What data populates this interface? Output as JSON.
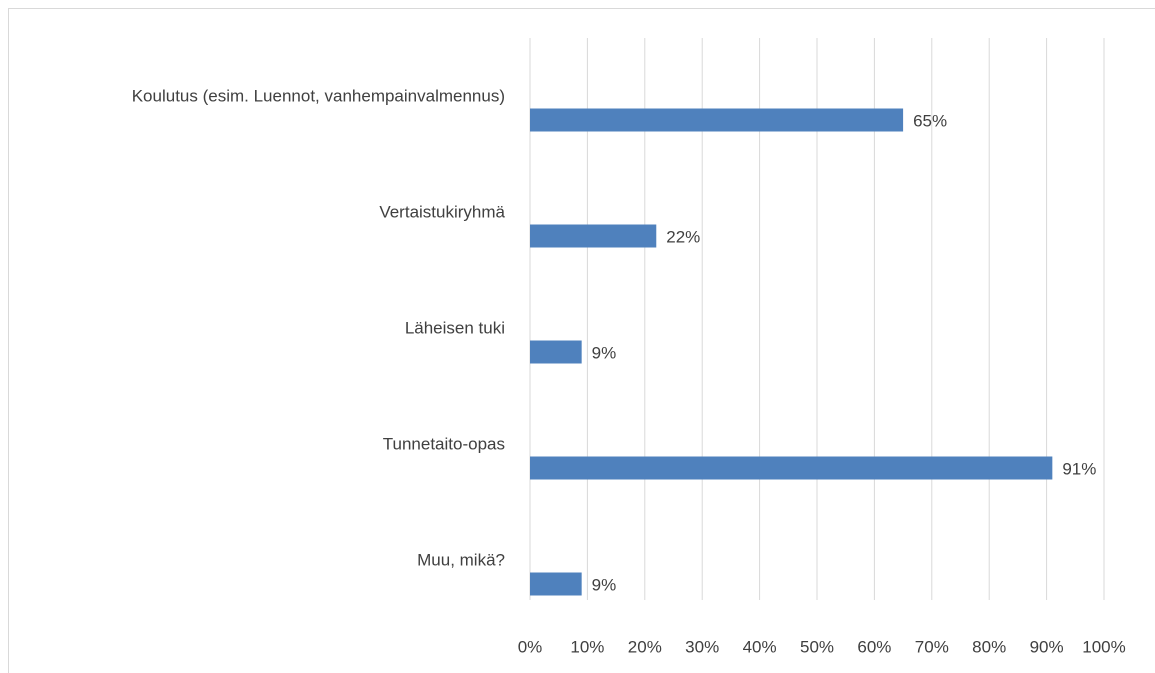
{
  "chart_data": {
    "type": "bar",
    "orientation": "horizontal",
    "categories": [
      "Koulutus (esim. Luennot, vanhempainvalmennus)",
      "Vertaistukiryhmä",
      "Läheisen tuki",
      "Tunnetaito-opas",
      "Muu, mikä?"
    ],
    "values": [
      65,
      22,
      9,
      91,
      9
    ],
    "value_labels": [
      "65%",
      "22%",
      "9%",
      "91%",
      "9%"
    ],
    "color": "#4f81bd",
    "xlim": [
      0,
      100
    ],
    "xticks": [
      {
        "value": 0,
        "label": "0%"
      },
      {
        "value": 10,
        "label": "10%"
      },
      {
        "value": 20,
        "label": "20%"
      },
      {
        "value": 30,
        "label": "30%"
      },
      {
        "value": 40,
        "label": "40%"
      },
      {
        "value": 50,
        "label": "50%"
      },
      {
        "value": 60,
        "label": "60%"
      },
      {
        "value": 70,
        "label": "70%"
      },
      {
        "value": 80,
        "label": "80%"
      },
      {
        "value": 90,
        "label": "90%"
      },
      {
        "value": 100,
        "label": "100%"
      }
    ],
    "grid": true
  }
}
